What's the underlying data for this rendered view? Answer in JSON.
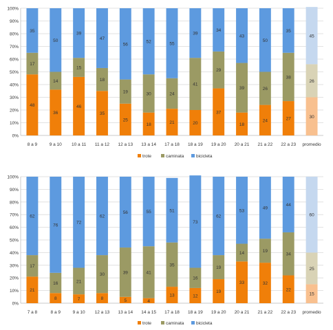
{
  "colors": {
    "trote": "#F07F09",
    "caminata": "#9B9A64",
    "bicicleta": "#5D9ADF",
    "trote_avg": "#F8C08F",
    "caminata_avg": "#D9D3B6",
    "bicicleta_avg": "#C5D8EF",
    "grid": "#D9D9D9",
    "axis_text": "#333333"
  },
  "chart_data": [
    {
      "type": "bar",
      "stacked": true,
      "percent": true,
      "categories": [
        "8 a 9",
        "9 a 10",
        "10 a 11",
        "11 a 12",
        "12 a 13",
        "13 a 14",
        "17 a 18",
        "18 a 19",
        "19 a 20",
        "20 a 21",
        "21 a 22",
        "22 a 23",
        "promedio"
      ],
      "series": [
        {
          "name": "trote",
          "values": [
            48,
            36,
            46,
            35,
            25,
            18,
            21,
            20,
            37,
            18,
            24,
            27,
            30
          ]
        },
        {
          "name": "caminata",
          "values": [
            17,
            14,
            15,
            18,
            19,
            30,
            24,
            41,
            29,
            39,
            26,
            38,
            26
          ]
        },
        {
          "name": "bicicleta",
          "values": [
            35,
            50,
            39,
            47,
            56,
            52,
            55,
            39,
            34,
            43,
            50,
            35,
            45
          ]
        }
      ],
      "yticks": [
        "0%",
        "10%",
        "20%",
        "30%",
        "40%",
        "50%",
        "60%",
        "70%",
        "80%",
        "90%",
        "100%"
      ],
      "ylim": [
        0,
        100
      ],
      "legend": [
        "trote",
        "caminata",
        "bicicleta"
      ],
      "legend_position": "bottom",
      "grid": true,
      "highlight_category": "promedio"
    },
    {
      "type": "bar",
      "stacked": true,
      "percent": true,
      "categories": [
        "7 a 8",
        "8 a 9",
        "9 a 10",
        "12 a 13",
        "13 a 14",
        "14 a 15",
        "17 a 18",
        "18 a 19",
        "19 a 20",
        "20 a 21",
        "21 a 22",
        "22 a 23",
        "promedio"
      ],
      "series": [
        {
          "name": "trote",
          "values": [
            21,
            8,
            7,
            8,
            5,
            4,
            13,
            12,
            19,
            33,
            32,
            22,
            15
          ]
        },
        {
          "name": "caminata",
          "values": [
            17,
            16,
            21,
            30,
            39,
            41,
            35,
            16,
            19,
            14,
            19,
            34,
            25
          ]
        },
        {
          "name": "bicicleta",
          "values": [
            62,
            76,
            72,
            62,
            56,
            55,
            51,
            73,
            62,
            53,
            49,
            44,
            60
          ]
        }
      ],
      "yticks": [
        "0%",
        "10%",
        "20%",
        "30%",
        "40%",
        "50%",
        "60%",
        "70%",
        "80%",
        "90%",
        "100%"
      ],
      "ylim": [
        0,
        100
      ],
      "legend": [
        "trote",
        "caminata",
        "bicicleta"
      ],
      "legend_position": "bottom",
      "grid": true,
      "highlight_category": "promedio"
    }
  ]
}
